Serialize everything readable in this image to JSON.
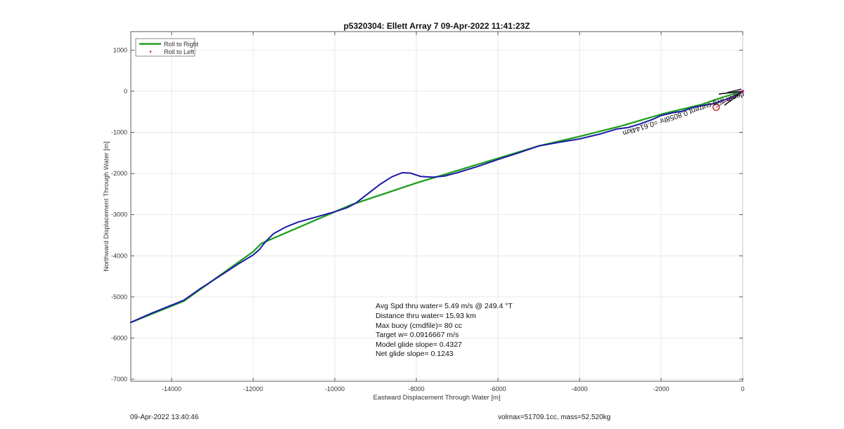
{
  "chart_data": {
    "type": "line",
    "title": "p5320304: Ellett Array 7 09-Apr-2022 11:41:23Z",
    "xlabel": "Eastward Displacement Through Water [m]",
    "ylabel": "Northward Displacement Through Water [m]",
    "xlim": [
      -15000,
      0
    ],
    "ylim": [
      -7050,
      1450
    ],
    "xticks": [
      -14000,
      -12000,
      -10000,
      -8000,
      -6000,
      -4000,
      -2000,
      0
    ],
    "yticks": [
      1000,
      0,
      -1000,
      -2000,
      -3000,
      -4000,
      -5000,
      -6000,
      -7000
    ],
    "grid": true,
    "legend": {
      "location": "top-left",
      "entries": [
        {
          "label": "Roll to Right",
          "color": "#1fa01f",
          "marker": "line"
        },
        {
          "label": "Roll to Left",
          "color": "#e02020",
          "marker": "dot"
        }
      ]
    },
    "series": [
      {
        "name": "Roll to Right",
        "color": "#1fa01f",
        "x": [
          -15000,
          -13700,
          -12000,
          -11800,
          -9600,
          -8000,
          -6000,
          -5000,
          -4000,
          -3000,
          -2000,
          -1000,
          -500,
          0
        ],
        "y": [
          -5620,
          -5100,
          -3900,
          -3700,
          -2760,
          -2230,
          -1630,
          -1330,
          -1100,
          -850,
          -560,
          -320,
          -150,
          0
        ]
      },
      {
        "name": "",
        "color": "#1a1aa8",
        "x": [
          -15000,
          -14500,
          -14000,
          -13700,
          -13300,
          -12800,
          -12400,
          -12000,
          -11850,
          -11700,
          -11500,
          -11200,
          -10900,
          -10500,
          -10000,
          -9700,
          -9500,
          -9200,
          -8900,
          -8600,
          -8350,
          -8150,
          -7900,
          -7600,
          -7300,
          -7000,
          -6500,
          -6000,
          -5500,
          -5000,
          -4500,
          -4000,
          -3500,
          -3100,
          -2800,
          -2500,
          -2200,
          -2000,
          -1700,
          -1500,
          -1200,
          -1000,
          -700,
          -500,
          -300,
          -100,
          0
        ],
        "y": [
          -5620,
          -5400,
          -5200,
          -5080,
          -4800,
          -4480,
          -4220,
          -3980,
          -3850,
          -3660,
          -3460,
          -3300,
          -3180,
          -3070,
          -2930,
          -2830,
          -2730,
          -2500,
          -2270,
          -2080,
          -1980,
          -1990,
          -2070,
          -2090,
          -2060,
          -1980,
          -1830,
          -1660,
          -1500,
          -1330,
          -1240,
          -1160,
          -1040,
          -920,
          -880,
          -790,
          -680,
          -590,
          -520,
          -490,
          -390,
          -350,
          -300,
          -230,
          -160,
          -60,
          0
        ]
      }
    ],
    "annotation_lines": [
      "Avg Spd thru water=  5.49 m/s @ 249.4 °T",
      "Distance thru water= 15.93 km",
      "Max buoy (cmdfile)= 80 cc",
      "Target w= 0.0916667 m/s",
      "Model glide slope= 0.4327",
      "Net glide slope= 0.1243"
    ],
    "current_label": "depth avg current 0.8058hr =0.6144km",
    "current_marker": {
      "x": -650,
      "y": -390
    },
    "footer_left": "09-Apr-2022 13:40:46",
    "footer_right": "volmax=51709.1cc, mass=52.520kg"
  }
}
